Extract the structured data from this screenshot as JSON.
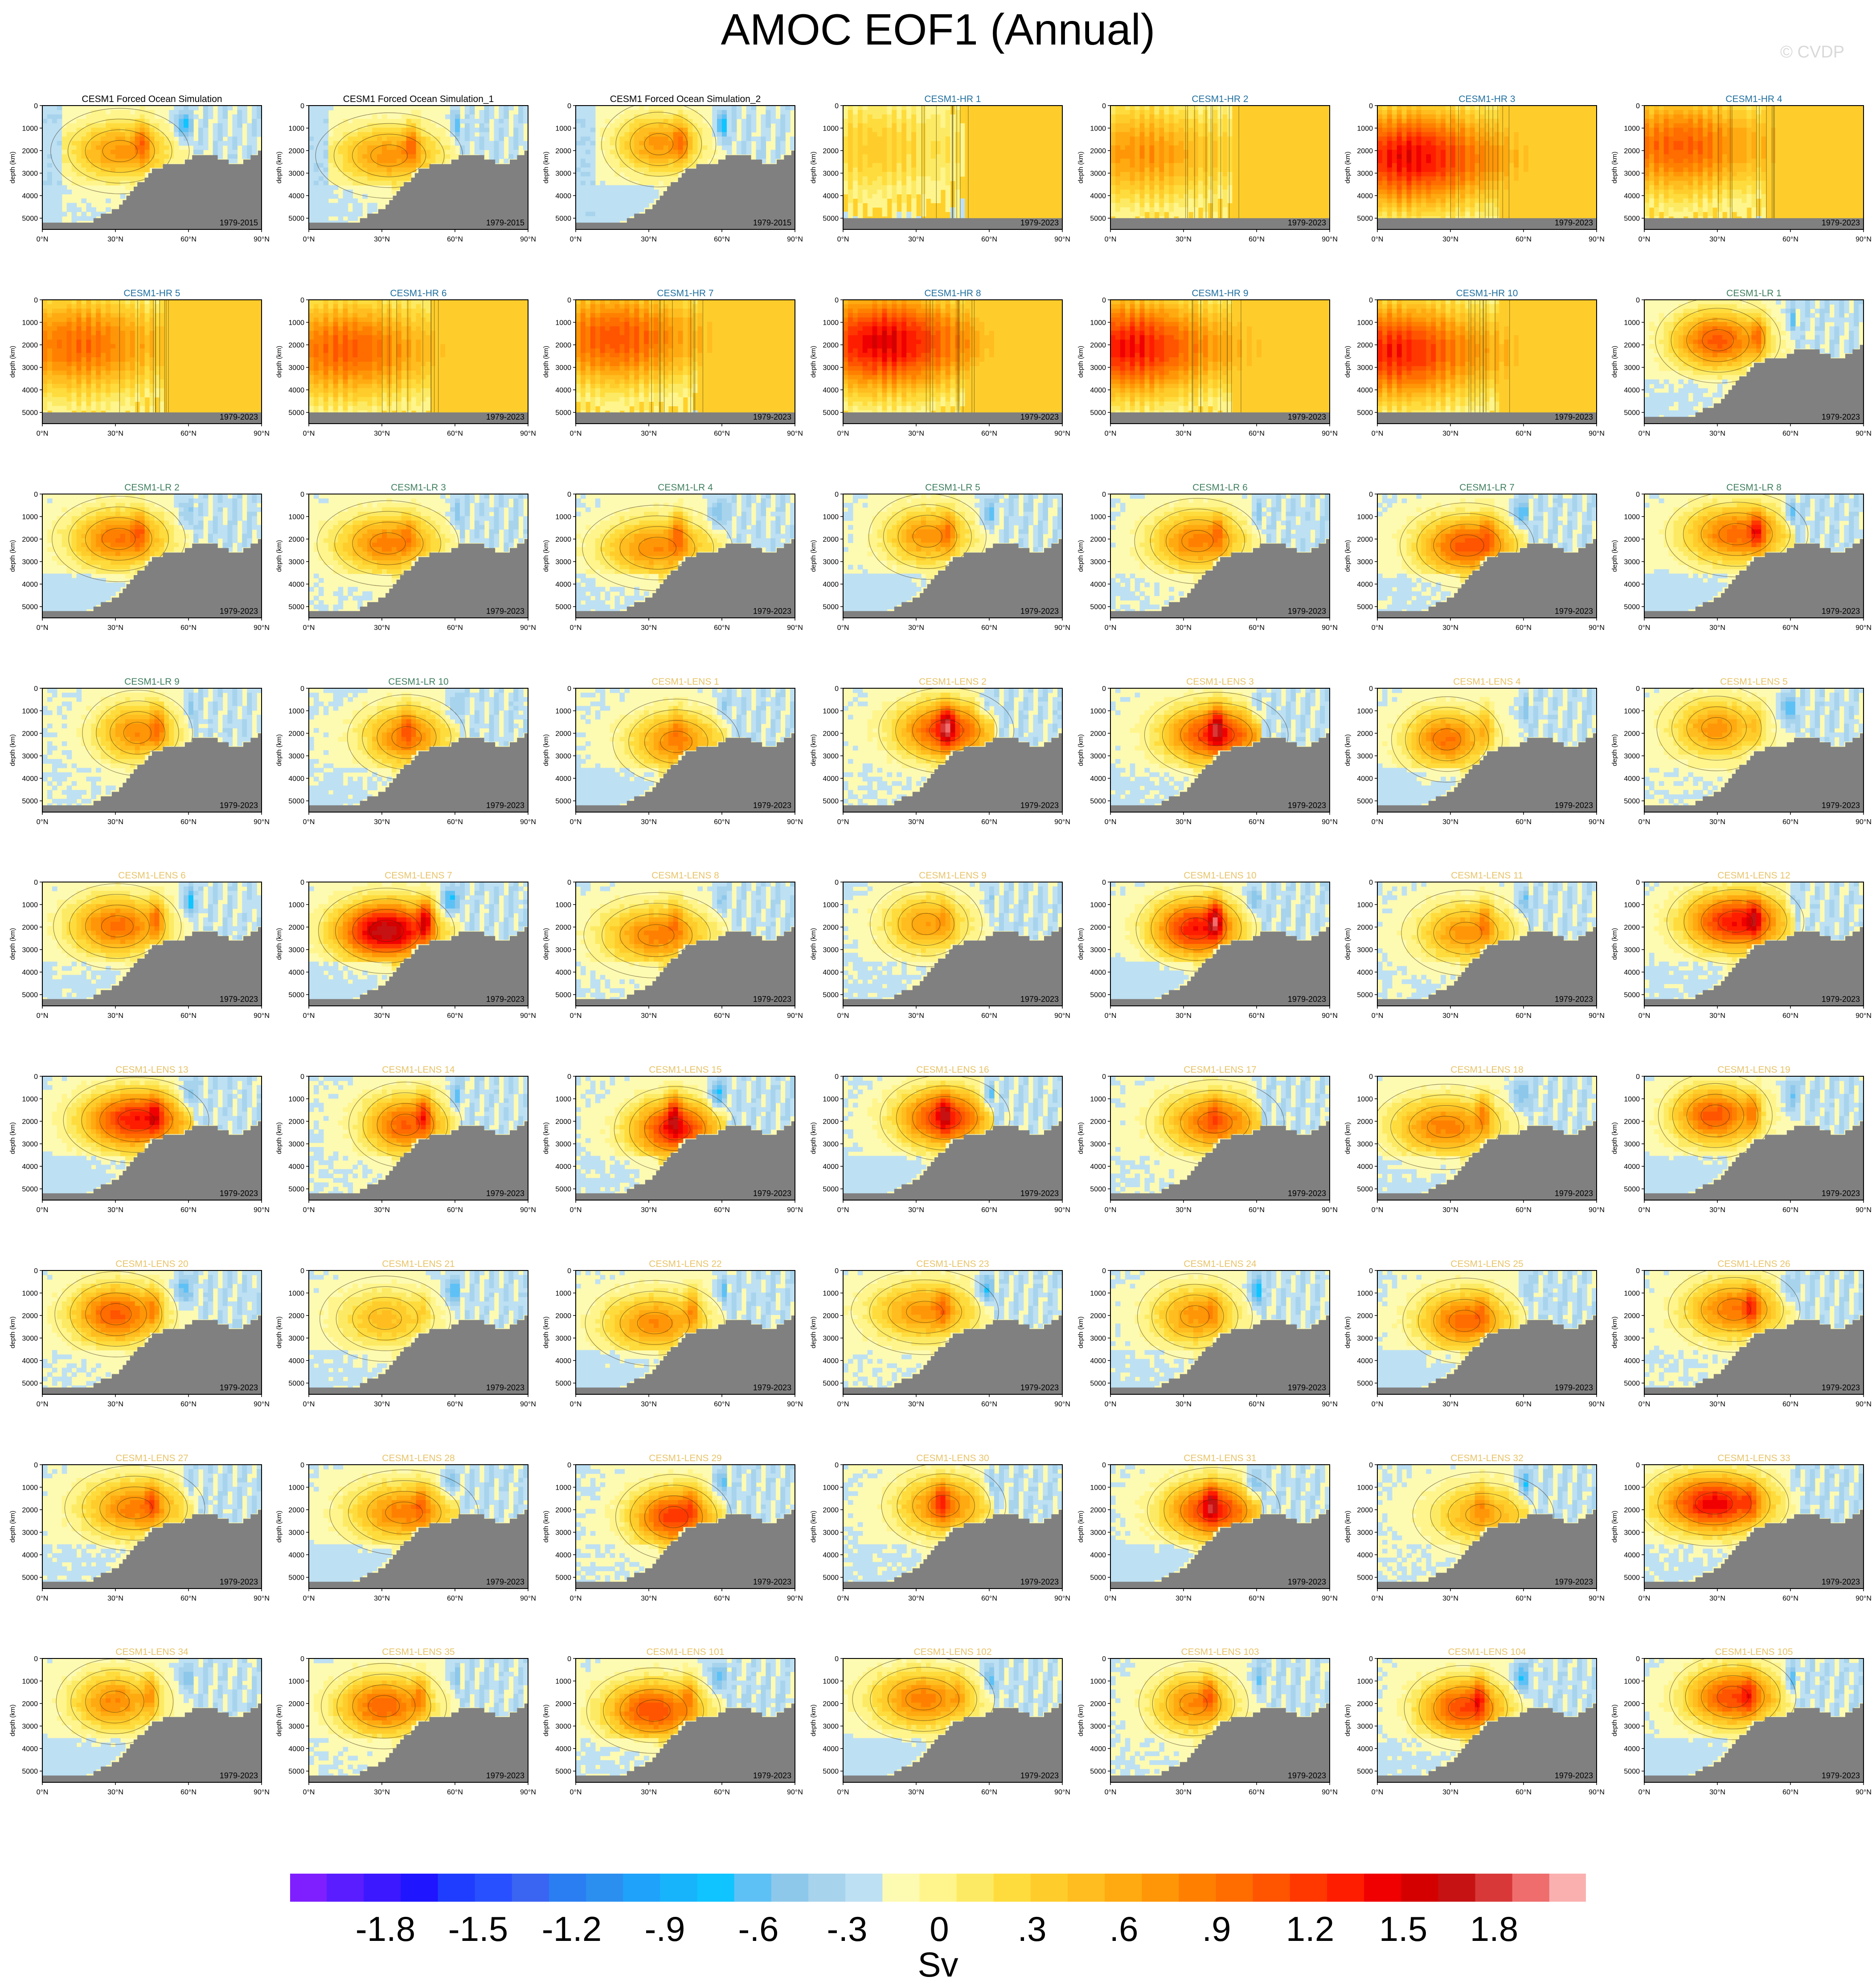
{
  "chart_data": {
    "type": "heatmap",
    "title": "AMOC EOF1 (Annual)",
    "watermark": "© CVDP",
    "ylabel": "depth (km)",
    "x_ticks": [
      "0°N",
      "30°N",
      "60°N",
      "90°N"
    ],
    "y_ticks": [
      "0",
      "1000",
      "2000",
      "3000",
      "4000",
      "5000"
    ],
    "xlim": [
      0,
      90
    ],
    "ylim": [
      5500,
      0
    ],
    "colorbar": {
      "unit": "Sv",
      "tick_labels": [
        "-1.8",
        "-1.5",
        "-1.2",
        "-.9",
        "-.6",
        "-.3",
        "0",
        ".3",
        ".6",
        ".9",
        "1.2",
        "1.5",
        "1.8"
      ],
      "colors": [
        "#7f1fff",
        "#5a1dff",
        "#3b18ff",
        "#1f15ff",
        "#1f3dff",
        "#2950ff",
        "#3a64f2",
        "#2a7ef2",
        "#2b8ff0",
        "#1fa3fa",
        "#18b4fb",
        "#0fc4ff",
        "#5ec1f5",
        "#8dc8eb",
        "#a7d3ed",
        "#bde0f3",
        "#fdfab2",
        "#fff58c",
        "#fdea64",
        "#ffdc3d",
        "#ffcd2b",
        "#ffbd1f",
        "#ffaa10",
        "#ff9607",
        "#ff8000",
        "#ff6c00",
        "#ff5400",
        "#ff3800",
        "#ff1d00",
        "#f00000",
        "#d40000",
        "#c61212",
        "#d83838",
        "#ef6d6d",
        "#fbb0b0"
      ]
    },
    "panels": [
      {
        "name": "CESM1 Forced Ocean Simulation",
        "period": "1979-2015",
        "group": "forced",
        "title_color": "#000000",
        "amp": 0.75,
        "mode": "forced"
      },
      {
        "name": "CESM1 Forced Ocean Simulation_1",
        "period": "1979-2015",
        "group": "forced",
        "title_color": "#000000",
        "amp": 0.75,
        "mode": "forced"
      },
      {
        "name": "CESM1 Forced Ocean Simulation_2",
        "period": "1979-2015",
        "group": "forced",
        "title_color": "#000000",
        "amp": 0.75,
        "mode": "forced"
      },
      {
        "name": "CESM1-HR 1",
        "period": "1979-2023",
        "group": "hr",
        "title_color": "#1f6f9f",
        "amp": 0.45,
        "mode": "hr"
      },
      {
        "name": "CESM1-HR 2",
        "period": "1979-2023",
        "group": "hr",
        "title_color": "#1f6f9f",
        "amp": 0.75,
        "mode": "hr"
      },
      {
        "name": "CESM1-HR 3",
        "period": "1979-2023",
        "group": "hr",
        "title_color": "#1f6f9f",
        "amp": 1.35,
        "mode": "hr"
      },
      {
        "name": "CESM1-HR 4",
        "period": "1979-2023",
        "group": "hr",
        "title_color": "#1f6f9f",
        "amp": 1.0,
        "mode": "hr"
      },
      {
        "name": "CESM1-HR 5",
        "period": "1979-2023",
        "group": "hr",
        "title_color": "#1f6f9f",
        "amp": 0.95,
        "mode": "hr"
      },
      {
        "name": "CESM1-HR 6",
        "period": "1979-2023",
        "group": "hr",
        "title_color": "#1f6f9f",
        "amp": 1.0,
        "mode": "hr"
      },
      {
        "name": "CESM1-HR 7",
        "period": "1979-2023",
        "group": "hr",
        "title_color": "#1f6f9f",
        "amp": 1.05,
        "mode": "hr"
      },
      {
        "name": "CESM1-HR 8",
        "period": "1979-2023",
        "group": "hr",
        "title_color": "#1f6f9f",
        "amp": 1.4,
        "mode": "hr"
      },
      {
        "name": "CESM1-HR 9",
        "period": "1979-2023",
        "group": "hr",
        "title_color": "#1f6f9f",
        "amp": 1.3,
        "mode": "hr"
      },
      {
        "name": "CESM1-HR 10",
        "period": "1979-2023",
        "group": "hr",
        "title_color": "#1f6f9f",
        "amp": 1.25,
        "mode": "hr"
      },
      {
        "name": "CESM1-LR 1",
        "period": "1979-2023",
        "group": "lr",
        "title_color": "#3f7f5f",
        "amp": 1.05,
        "mode": "lens"
      },
      {
        "name": "CESM1-LR 2",
        "period": "1979-2023",
        "group": "lr",
        "title_color": "#3f7f5f",
        "amp": 0.9,
        "mode": "lens"
      },
      {
        "name": "CESM1-LR 3",
        "period": "1979-2023",
        "group": "lr",
        "title_color": "#3f7f5f",
        "amp": 0.85,
        "mode": "lens"
      },
      {
        "name": "CESM1-LR 4",
        "period": "1979-2023",
        "group": "lr",
        "title_color": "#3f7f5f",
        "amp": 0.8,
        "mode": "lens"
      },
      {
        "name": "CESM1-LR 5",
        "period": "1979-2023",
        "group": "lr",
        "title_color": "#3f7f5f",
        "amp": 0.75,
        "mode": "lens"
      },
      {
        "name": "CESM1-LR 6",
        "period": "1979-2023",
        "group": "lr",
        "title_color": "#3f7f5f",
        "amp": 0.85,
        "mode": "lens"
      },
      {
        "name": "CESM1-LR 7",
        "period": "1979-2023",
        "group": "lr",
        "title_color": "#3f7f5f",
        "amp": 1.05,
        "mode": "lens"
      },
      {
        "name": "CESM1-LR 8",
        "period": "1979-2023",
        "group": "lr",
        "title_color": "#3f7f5f",
        "amp": 0.95,
        "mode": "lens"
      },
      {
        "name": "CESM1-LR 9",
        "period": "1979-2023",
        "group": "lr",
        "title_color": "#3f7f5f",
        "amp": 0.8,
        "mode": "lens"
      },
      {
        "name": "CESM1-LR 10",
        "period": "1979-2023",
        "group": "lr",
        "title_color": "#3f7f5f",
        "amp": 0.85,
        "mode": "lens"
      },
      {
        "name": "CESM1-LENS 1",
        "period": "1979-2023",
        "group": "lens",
        "title_color": "#e8c46a",
        "amp": 0.8,
        "mode": "lens"
      },
      {
        "name": "CESM1-LENS 2",
        "period": "1979-2023",
        "group": "lens",
        "title_color": "#e8c46a",
        "amp": 1.15,
        "mode": "lens"
      },
      {
        "name": "CESM1-LENS 3",
        "period": "1979-2023",
        "group": "lens",
        "title_color": "#e8c46a",
        "amp": 1.2,
        "mode": "lens"
      },
      {
        "name": "CESM1-LENS 4",
        "period": "1979-2023",
        "group": "lens",
        "title_color": "#e8c46a",
        "amp": 0.9,
        "mode": "lens"
      },
      {
        "name": "CESM1-LENS 5",
        "period": "1979-2023",
        "group": "lens",
        "title_color": "#e8c46a",
        "amp": 0.75,
        "mode": "lens"
      },
      {
        "name": "CESM1-LENS 6",
        "period": "1979-2023",
        "group": "lens",
        "title_color": "#e8c46a",
        "amp": 0.95,
        "mode": "lens"
      },
      {
        "name": "CESM1-LENS 7",
        "period": "1979-2023",
        "group": "lens",
        "title_color": "#e8c46a",
        "amp": 1.6,
        "mode": "lens"
      },
      {
        "name": "CESM1-LENS 8",
        "period": "1979-2023",
        "group": "lens",
        "title_color": "#e8c46a",
        "amp": 0.85,
        "mode": "lens"
      },
      {
        "name": "CESM1-LENS 9",
        "period": "1979-2023",
        "group": "lens",
        "title_color": "#e8c46a",
        "amp": 0.7,
        "mode": "lens"
      },
      {
        "name": "CESM1-LENS 10",
        "period": "1979-2023",
        "group": "lens",
        "title_color": "#e8c46a",
        "amp": 1.3,
        "mode": "lens"
      },
      {
        "name": "CESM1-LENS 11",
        "period": "1979-2023",
        "group": "lens",
        "title_color": "#e8c46a",
        "amp": 0.75,
        "mode": "lens"
      },
      {
        "name": "CESM1-LENS 12",
        "period": "1979-2023",
        "group": "lens",
        "title_color": "#e8c46a",
        "amp": 1.3,
        "mode": "lens"
      },
      {
        "name": "CESM1-LENS 13",
        "period": "1979-2023",
        "group": "lens",
        "title_color": "#e8c46a",
        "amp": 1.3,
        "mode": "lens"
      },
      {
        "name": "CESM1-LENS 14",
        "period": "1979-2023",
        "group": "lens",
        "title_color": "#e8c46a",
        "amp": 1.0,
        "mode": "lens"
      },
      {
        "name": "CESM1-LENS 15",
        "period": "1979-2023",
        "group": "lens",
        "title_color": "#e8c46a",
        "amp": 1.25,
        "mode": "lens"
      },
      {
        "name": "CESM1-LENS 16",
        "period": "1979-2023",
        "group": "lens",
        "title_color": "#e8c46a",
        "amp": 1.2,
        "mode": "lens"
      },
      {
        "name": "CESM1-LENS 17",
        "period": "1979-2023",
        "group": "lens",
        "title_color": "#e8c46a",
        "amp": 0.95,
        "mode": "lens"
      },
      {
        "name": "CESM1-LENS 18",
        "period": "1979-2023",
        "group": "lens",
        "title_color": "#e8c46a",
        "amp": 0.85,
        "mode": "lens"
      },
      {
        "name": "CESM1-LENS 19",
        "period": "1979-2023",
        "group": "lens",
        "title_color": "#e8c46a",
        "amp": 1.05,
        "mode": "lens"
      },
      {
        "name": "CESM1-LENS 20",
        "period": "1979-2023",
        "group": "lens",
        "title_color": "#e8c46a",
        "amp": 1.05,
        "mode": "lens"
      },
      {
        "name": "CESM1-LENS 21",
        "period": "1979-2023",
        "group": "lens",
        "title_color": "#e8c46a",
        "amp": 0.55,
        "mode": "lens"
      },
      {
        "name": "CESM1-LENS 22",
        "period": "1979-2023",
        "group": "lens",
        "title_color": "#e8c46a",
        "amp": 0.8,
        "mode": "lens"
      },
      {
        "name": "CESM1-LENS 23",
        "period": "1979-2023",
        "group": "lens",
        "title_color": "#e8c46a",
        "amp": 0.75,
        "mode": "lens"
      },
      {
        "name": "CESM1-LENS 24",
        "period": "1979-2023",
        "group": "lens",
        "title_color": "#e8c46a",
        "amp": 0.75,
        "mode": "lens"
      },
      {
        "name": "CESM1-LENS 25",
        "period": "1979-2023",
        "group": "lens",
        "title_color": "#e8c46a",
        "amp": 0.95,
        "mode": "lens"
      },
      {
        "name": "CESM1-LENS 26",
        "period": "1979-2023",
        "group": "lens",
        "title_color": "#e8c46a",
        "amp": 0.9,
        "mode": "lens"
      },
      {
        "name": "CESM1-LENS 27",
        "period": "1979-2023",
        "group": "lens",
        "title_color": "#e8c46a",
        "amp": 0.85,
        "mode": "lens"
      },
      {
        "name": "CESM1-LENS 28",
        "period": "1979-2023",
        "group": "lens",
        "title_color": "#e8c46a",
        "amp": 0.85,
        "mode": "lens"
      },
      {
        "name": "CESM1-LENS 29",
        "period": "1979-2023",
        "group": "lens",
        "title_color": "#e8c46a",
        "amp": 1.15,
        "mode": "lens"
      },
      {
        "name": "CESM1-LENS 30",
        "period": "1979-2023",
        "group": "lens",
        "title_color": "#e8c46a",
        "amp": 0.85,
        "mode": "lens"
      },
      {
        "name": "CESM1-LENS 31",
        "period": "1979-2023",
        "group": "lens",
        "title_color": "#e8c46a",
        "amp": 1.2,
        "mode": "lens"
      },
      {
        "name": "CESM1-LENS 32",
        "period": "1979-2023",
        "group": "lens",
        "title_color": "#e8c46a",
        "amp": 0.65,
        "mode": "lens"
      },
      {
        "name": "CESM1-LENS 33",
        "period": "1979-2023",
        "group": "lens",
        "title_color": "#e8c46a",
        "amp": 1.35,
        "mode": "lens"
      },
      {
        "name": "CESM1-LENS 34",
        "period": "1979-2023",
        "group": "lens",
        "title_color": "#e8c46a",
        "amp": 0.8,
        "mode": "lens"
      },
      {
        "name": "CESM1-LENS 35",
        "period": "1979-2023",
        "group": "lens",
        "title_color": "#e8c46a",
        "amp": 1.0,
        "mode": "lens"
      },
      {
        "name": "CESM1-LENS 101",
        "period": "1979-2023",
        "group": "lens",
        "title_color": "#e8c46a",
        "amp": 1.1,
        "mode": "lens"
      },
      {
        "name": "CESM1-LENS 102",
        "period": "1979-2023",
        "group": "lens",
        "title_color": "#e8c46a",
        "amp": 0.85,
        "mode": "lens"
      },
      {
        "name": "CESM1-LENS 103",
        "period": "1979-2023",
        "group": "lens",
        "title_color": "#e8c46a",
        "amp": 0.8,
        "mode": "lens"
      },
      {
        "name": "CESM1-LENS 104",
        "period": "1979-2023",
        "group": "lens",
        "title_color": "#e8c46a",
        "amp": 1.1,
        "mode": "lens"
      },
      {
        "name": "CESM1-LENS 105",
        "period": "1979-2023",
        "group": "lens",
        "title_color": "#e8c46a",
        "amp": 1.1,
        "mode": "lens"
      }
    ]
  }
}
